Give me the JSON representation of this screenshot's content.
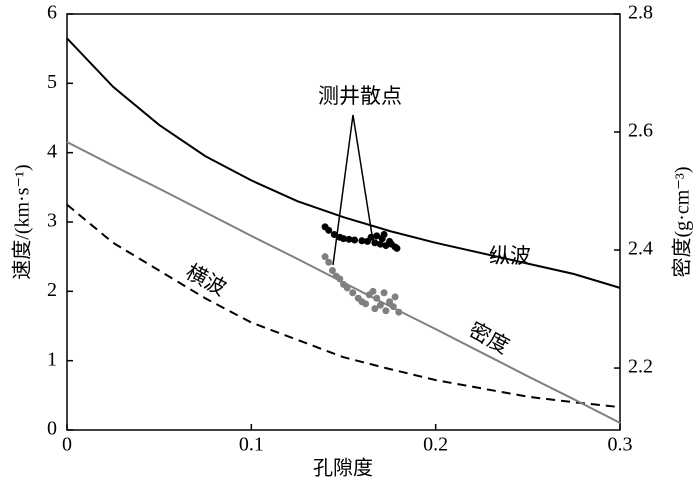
{
  "chart_data": {
    "type": "line",
    "x_label": "孔隙度",
    "y_label": "速度/(km·s⁻¹)",
    "y2_label": "密度(g·cm⁻³)",
    "x": [
      0,
      0.025,
      0.05,
      0.075,
      0.1,
      0.125,
      0.15,
      0.175,
      0.2,
      0.225,
      0.25,
      0.275,
      0.3
    ],
    "xlim": [
      0,
      0.3
    ],
    "xticks": [
      0,
      0.1,
      0.2,
      0.3
    ],
    "ylim": [
      0,
      6
    ],
    "yticks": [
      0,
      1,
      2,
      3,
      4,
      5,
      6
    ],
    "y2lim": [
      2.095,
      2.8
    ],
    "y2ticks": [
      2.2,
      2.4,
      2.6,
      2.8
    ],
    "series": [
      {
        "name": "纵波",
        "color": "#000000",
        "style": "solid",
        "values": [
          5.65,
          4.95,
          4.4,
          3.95,
          3.6,
          3.3,
          3.07,
          2.87,
          2.7,
          2.55,
          2.4,
          2.25,
          2.05
        ]
      },
      {
        "name": "横波",
        "color": "#000000",
        "style": "dashed",
        "values": [
          3.25,
          2.7,
          2.3,
          1.9,
          1.55,
          1.3,
          1.05,
          0.88,
          0.72,
          0.6,
          0.48,
          0.4,
          0.33
        ]
      },
      {
        "name": "密度",
        "color": "#808080",
        "style": "solid",
        "axis": "y2",
        "values": [
          2.583,
          2.543,
          2.504,
          2.464,
          2.424,
          2.385,
          2.345,
          2.305,
          2.266,
          2.226,
          2.186,
          2.147,
          2.107
        ]
      }
    ],
    "scatter": [
      {
        "color": "#000000",
        "x": [
          0.14,
          0.142,
          0.145,
          0.148,
          0.15,
          0.153,
          0.156,
          0.16,
          0.163,
          0.165,
          0.167,
          0.168,
          0.17,
          0.171,
          0.172,
          0.173,
          0.175,
          0.176,
          0.178,
          0.179
        ],
        "values": [
          2.93,
          2.88,
          2.82,
          2.78,
          2.76,
          2.75,
          2.74,
          2.73,
          2.72,
          2.78,
          2.7,
          2.8,
          2.68,
          2.76,
          2.82,
          2.66,
          2.72,
          2.68,
          2.64,
          2.62
        ]
      },
      {
        "color": "#808080",
        "x": [
          0.14,
          0.142,
          0.144,
          0.146,
          0.148,
          0.15,
          0.152,
          0.155,
          0.158,
          0.16,
          0.162,
          0.164,
          0.166,
          0.167,
          0.168,
          0.17,
          0.172,
          0.173,
          0.175,
          0.177,
          0.178,
          0.18
        ],
        "values": [
          2.5,
          2.42,
          2.3,
          2.22,
          2.18,
          2.1,
          2.05,
          1.98,
          1.9,
          1.85,
          1.82,
          1.95,
          2.0,
          1.75,
          1.9,
          1.8,
          1.98,
          1.72,
          1.85,
          1.78,
          1.92,
          1.7
        ]
      }
    ],
    "annotation": "测井散点"
  }
}
